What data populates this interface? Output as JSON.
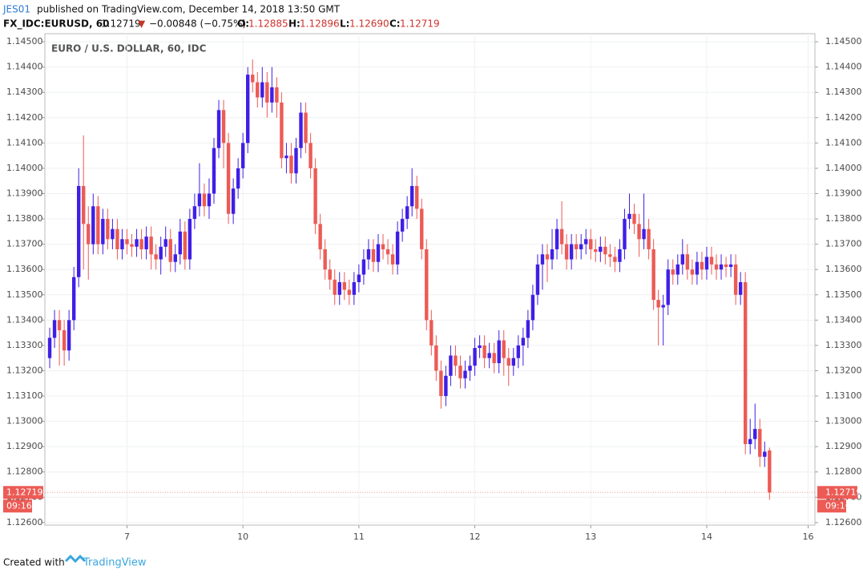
{
  "header": {
    "user": "JES01",
    "published": "published on TradingView.com, December 14, 2018 13:50 GMT",
    "symbol": "FX_IDC:EURUSD, 60",
    "last": "1.12719",
    "arrow": "▼",
    "change": "−0.00848 (−0.75%)",
    "o_label": "O:",
    "o": "1.12885",
    "h_label": "H:",
    "h": "1.12896",
    "l_label": "L:",
    "l": "1.12690",
    "c_label": "C:",
    "c": "1.12719"
  },
  "footer": {
    "created": "Created with",
    "brand": "TradingView"
  },
  "chart_data": {
    "type": "candlestick",
    "title": "EURO / U.S. DOLLAR, 60, IDC",
    "up_color": "#3f1fe6",
    "down_color": "#ec5b55",
    "grid": true,
    "open": [
      1.1325,
      1.1333,
      1.134,
      1.1336,
      1.1328,
      1.134,
      1.1357,
      1.1393,
      1.1378,
      1.137,
      1.1385,
      1.137,
      1.138,
      1.1372,
      1.1376,
      1.1368,
      1.1372,
      1.137,
      1.1369,
      1.1372,
      1.1368,
      1.1373,
      1.1366,
      1.1364,
      1.1369,
      1.1372,
      1.1363,
      1.1366,
      1.1375,
      1.1364,
      1.138,
      1.1385,
      1.139,
      1.1385,
      1.139,
      1.1408,
      1.1423,
      1.141,
      1.1382,
      1.1392,
      1.14,
      1.141,
      1.1437,
      1.1434,
      1.1428,
      1.1434,
      1.1426,
      1.1432,
      1.1426,
      1.1404,
      1.1405,
      1.1398,
      1.1408,
      1.1422,
      1.141,
      1.14,
      1.1378,
      1.1368,
      1.136,
      1.1356,
      1.135,
      1.1355,
      1.1352,
      1.135,
      1.1355,
      1.1358,
      1.1364,
      1.1368,
      1.1363,
      1.137,
      1.1368,
      1.1366,
      1.1362,
      1.1375,
      1.138,
      1.1385,
      1.1393,
      1.1384,
      1.1368,
      1.134,
      1.133,
      1.132,
      1.131,
      1.1318,
      1.1326,
      1.1322,
      1.1317,
      1.132,
      1.1322,
      1.1329,
      1.133,
      1.1325,
      1.1327,
      1.1323,
      1.1332,
      1.1325,
      1.1322,
      1.1325,
      1.133,
      1.1333,
      1.134,
      1.135,
      1.1362,
      1.1366,
      1.1364,
      1.1368,
      1.1376,
      1.137,
      1.1364,
      1.137,
      1.1368,
      1.137,
      1.1372,
      1.1368,
      1.1367,
      1.1369,
      1.1366,
      1.1365,
      1.1363,
      1.1368,
      1.138,
      1.1382,
      1.1378,
      1.1372,
      1.1376,
      1.1368,
      1.1348,
      1.1345,
      1.1346,
      1.136,
      1.1358,
      1.1362,
      1.1366,
      1.136,
      1.1358,
      1.1363,
      1.136,
      1.1365,
      1.1362,
      1.136,
      1.1362,
      1.1361,
      1.1362,
      1.135,
      1.1355,
      1.1291,
      1.1293,
      1.1297,
      1.1286,
      1.12885
    ],
    "high": [
      1.1337,
      1.1344,
      1.1344,
      1.134,
      1.1344,
      1.1361,
      1.14,
      1.1413,
      1.1385,
      1.139,
      1.1389,
      1.1384,
      1.1384,
      1.138,
      1.138,
      1.1376,
      1.1376,
      1.1374,
      1.1376,
      1.1376,
      1.1377,
      1.1377,
      1.137,
      1.1373,
      1.1377,
      1.1376,
      1.137,
      1.138,
      1.1379,
      1.1384,
      1.139,
      1.1402,
      1.1394,
      1.1396,
      1.1412,
      1.1427,
      1.1427,
      1.1414,
      1.1396,
      1.1404,
      1.1414,
      1.144,
      1.1443,
      1.1438,
      1.144,
      1.1438,
      1.144,
      1.1436,
      1.143,
      1.141,
      1.141,
      1.1412,
      1.1426,
      1.1426,
      1.1414,
      1.1404,
      1.1382,
      1.1372,
      1.1364,
      1.136,
      1.1359,
      1.1359,
      1.1356,
      1.1359,
      1.1362,
      1.1368,
      1.1372,
      1.1372,
      1.1374,
      1.1374,
      1.1372,
      1.137,
      1.1379,
      1.1384,
      1.1389,
      1.14,
      1.1397,
      1.1388,
      1.1372,
      1.1344,
      1.1334,
      1.1324,
      1.1322,
      1.133,
      1.133,
      1.1326,
      1.1324,
      1.1326,
      1.1333,
      1.1334,
      1.1334,
      1.1331,
      1.1331,
      1.1336,
      1.1336,
      1.1329,
      1.1329,
      1.1334,
      1.1337,
      1.1344,
      1.1354,
      1.1366,
      1.137,
      1.137,
      1.1376,
      1.138,
      1.1387,
      1.1374,
      1.1374,
      1.1374,
      1.1374,
      1.1376,
      1.1376,
      1.1372,
      1.1373,
      1.1373,
      1.137,
      1.1369,
      1.1372,
      1.1384,
      1.139,
      1.1386,
      1.1382,
      1.139,
      1.138,
      1.1372,
      1.1352,
      1.135,
      1.1364,
      1.1364,
      1.1366,
      1.1372,
      1.137,
      1.1364,
      1.1367,
      1.1367,
      1.1369,
      1.1369,
      1.1366,
      1.1366,
      1.1365,
      1.1366,
      1.1366,
      1.1359,
      1.1359,
      1.1301,
      1.1307,
      1.1301,
      1.1292,
      1.12896
    ],
    "low": [
      1.1321,
      1.1329,
      1.1322,
      1.1322,
      1.1324,
      1.1336,
      1.1353,
      1.136,
      1.1356,
      1.1366,
      1.1366,
      1.1366,
      1.1368,
      1.1368,
      1.1364,
      1.1364,
      1.1366,
      1.1365,
      1.1365,
      1.1364,
      1.1364,
      1.136,
      1.136,
      1.1358,
      1.1365,
      1.1359,
      1.1359,
      1.1362,
      1.136,
      1.136,
      1.1376,
      1.1381,
      1.1381,
      1.138,
      1.1386,
      1.1404,
      1.14,
      1.1378,
      1.1378,
      1.1388,
      1.1396,
      1.1406,
      1.143,
      1.1424,
      1.1424,
      1.142,
      1.1422,
      1.142,
      1.14,
      1.1398,
      1.1394,
      1.1394,
      1.1404,
      1.1406,
      1.1396,
      1.1374,
      1.1364,
      1.1356,
      1.1352,
      1.1346,
      1.1346,
      1.1348,
      1.1346,
      1.1346,
      1.1351,
      1.1354,
      1.136,
      1.1359,
      1.1359,
      1.1364,
      1.1362,
      1.1358,
      1.1358,
      1.1371,
      1.1376,
      1.1381,
      1.138,
      1.1364,
      1.1336,
      1.1326,
      1.1316,
      1.1305,
      1.1306,
      1.1314,
      1.1318,
      1.1313,
      1.1313,
      1.1316,
      1.1318,
      1.1325,
      1.1321,
      1.1321,
      1.1319,
      1.1319,
      1.1318,
      1.1314,
      1.1318,
      1.1321,
      1.1322,
      1.1329,
      1.1336,
      1.1346,
      1.1352,
      1.1355,
      1.136,
      1.1364,
      1.1366,
      1.136,
      1.136,
      1.1364,
      1.1364,
      1.1366,
      1.1364,
      1.1363,
      1.1363,
      1.1362,
      1.1361,
      1.1359,
      1.1359,
      1.1364,
      1.1376,
      1.1374,
      1.1365,
      1.1368,
      1.1364,
      1.1344,
      1.133,
      1.133,
      1.1342,
      1.1354,
      1.1354,
      1.1358,
      1.1356,
      1.1354,
      1.1354,
      1.1356,
      1.1356,
      1.1358,
      1.1356,
      1.1356,
      1.1357,
      1.1357,
      1.1346,
      1.1346,
      1.1287,
      1.1287,
      1.1289,
      1.1282,
      1.1282,
      1.1269
    ],
    "close": [
      1.1333,
      1.134,
      1.1336,
      1.1328,
      1.134,
      1.1357,
      1.1393,
      1.1378,
      1.137,
      1.1385,
      1.137,
      1.138,
      1.1372,
      1.1376,
      1.1368,
      1.1372,
      1.137,
      1.1369,
      1.1372,
      1.1368,
      1.1373,
      1.1366,
      1.1364,
      1.1369,
      1.1372,
      1.1363,
      1.1366,
      1.1375,
      1.1364,
      1.138,
      1.1385,
      1.139,
      1.1385,
      1.139,
      1.1408,
      1.1423,
      1.141,
      1.1382,
      1.1392,
      1.14,
      1.141,
      1.1437,
      1.1434,
      1.1428,
      1.1434,
      1.1426,
      1.1432,
      1.1426,
      1.1404,
      1.1405,
      1.1398,
      1.1408,
      1.1422,
      1.141,
      1.14,
      1.1378,
      1.1368,
      1.136,
      1.1356,
      1.135,
      1.1355,
      1.1352,
      1.135,
      1.1355,
      1.1358,
      1.1364,
      1.1368,
      1.1363,
      1.137,
      1.1368,
      1.1366,
      1.1362,
      1.1375,
      1.138,
      1.1385,
      1.1393,
      1.1384,
      1.1368,
      1.134,
      1.133,
      1.132,
      1.131,
      1.1318,
      1.1326,
      1.1322,
      1.1317,
      1.132,
      1.1322,
      1.1329,
      1.133,
      1.1325,
      1.1327,
      1.1323,
      1.1332,
      1.1325,
      1.1322,
      1.1325,
      1.133,
      1.1333,
      1.134,
      1.135,
      1.1362,
      1.1366,
      1.1364,
      1.1368,
      1.1376,
      1.137,
      1.1364,
      1.137,
      1.1368,
      1.137,
      1.1372,
      1.1368,
      1.1367,
      1.1369,
      1.1366,
      1.1365,
      1.1363,
      1.1368,
      1.138,
      1.1382,
      1.1378,
      1.1372,
      1.1376,
      1.1368,
      1.1348,
      1.1345,
      1.1346,
      1.136,
      1.1358,
      1.1362,
      1.1366,
      1.136,
      1.1358,
      1.1363,
      1.136,
      1.1365,
      1.1362,
      1.136,
      1.1362,
      1.1361,
      1.1362,
      1.135,
      1.1355,
      1.1291,
      1.1293,
      1.1297,
      1.1286,
      1.1288,
      1.12719
    ],
    "ylim": [
      1.1259,
      1.14532
    ],
    "yticks": [
      {
        "value": 1.126,
        "label": "1.12600"
      },
      {
        "value": 1.127,
        "label": "1.12700"
      },
      {
        "value": 1.128,
        "label": "1.12800"
      },
      {
        "value": 1.129,
        "label": "1.12900"
      },
      {
        "value": 1.13,
        "label": "1.13000"
      },
      {
        "value": 1.131,
        "label": "1.13100"
      },
      {
        "value": 1.132,
        "label": "1.13200"
      },
      {
        "value": 1.133,
        "label": "1.13300"
      },
      {
        "value": 1.134,
        "label": "1.13400"
      },
      {
        "value": 1.135,
        "label": "1.13500"
      },
      {
        "value": 1.136,
        "label": "1.13600"
      },
      {
        "value": 1.137,
        "label": "1.13700"
      },
      {
        "value": 1.138,
        "label": "1.13800"
      },
      {
        "value": 1.139,
        "label": "1.13900"
      },
      {
        "value": 1.14,
        "label": "1.14000"
      },
      {
        "value": 1.141,
        "label": "1.14100"
      },
      {
        "value": 1.142,
        "label": "1.14200"
      },
      {
        "value": 1.143,
        "label": "1.14300"
      },
      {
        "value": 1.144,
        "label": "1.14400"
      },
      {
        "value": 1.145,
        "label": "1.14500"
      }
    ],
    "xlim": [
      -1,
      158.4
    ],
    "xticks": [
      {
        "value": 16,
        "label": "7"
      },
      {
        "value": 40,
        "label": "10"
      },
      {
        "value": 64,
        "label": "11"
      },
      {
        "value": 88,
        "label": "12"
      },
      {
        "value": 112,
        "label": "13"
      },
      {
        "value": 136,
        "label": "14"
      },
      {
        "value": 157,
        "label": "16"
      }
    ],
    "last_price": {
      "value": 1.12719,
      "label": "1.12719"
    },
    "countdown": "09:16"
  }
}
